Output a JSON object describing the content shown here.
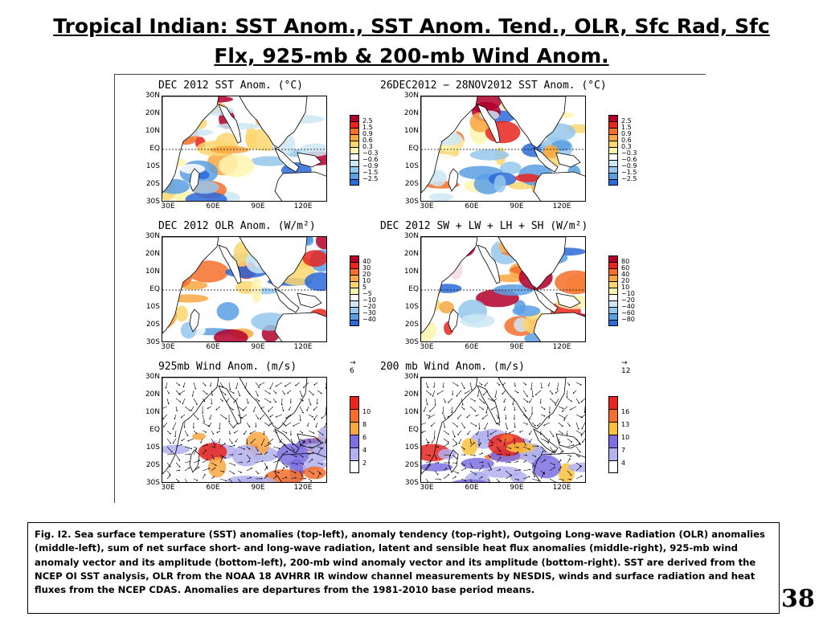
{
  "slide": {
    "title": "Tropical Indian: SST Anom., SST Anom. Tend., OLR, Sfc Rad, Sfc Flx, 925-mb & 200-mb Wind Anom.",
    "page_number": "38"
  },
  "axes": {
    "lat_labels": [
      "30N",
      "20N",
      "10N",
      "EQ",
      "10S",
      "20S",
      "30S"
    ],
    "lon_labels": [
      "30E",
      "60E",
      "90E",
      "120E"
    ]
  },
  "panels": [
    {
      "id": "sst",
      "title": "DEC 2012 SST Anom. (°C)",
      "colorbar": {
        "labels": [
          "2.5",
          "1.5",
          "0.9",
          "0.6",
          "0.3",
          "−0.3",
          "−0.6",
          "−0.9",
          "−1.5",
          "−2.5"
        ],
        "colors": [
          "#b2002a",
          "#e8251e",
          "#f46f2b",
          "#f9a742",
          "#fbd66e",
          "#fff4b0",
          "#ffffff",
          "#cde8f4",
          "#95c7ec",
          "#5a9fe3",
          "#2b6ad9"
        ]
      }
    },
    {
      "id": "sst-tend",
      "title": "26DEC2012 − 28NOV2012 SST Anom. (°C)",
      "colorbar": {
        "labels": [
          "2.5",
          "1.5",
          "0.9",
          "0.6",
          "0.3",
          "−0.3",
          "−0.6",
          "−0.9",
          "−1.5",
          "−2.5"
        ],
        "colors": [
          "#b2002a",
          "#e8251e",
          "#f46f2b",
          "#f9a742",
          "#fbd66e",
          "#fff4b0",
          "#ffffff",
          "#cde8f4",
          "#95c7ec",
          "#5a9fe3",
          "#2b6ad9"
        ]
      }
    },
    {
      "id": "olr",
      "title": "DEC 2012 OLR Anom. (W/m²)",
      "colorbar": {
        "labels": [
          "40",
          "30",
          "20",
          "10",
          "5",
          "−5",
          "−10",
          "−20",
          "−30",
          "−40"
        ],
        "colors": [
          "#b2002a",
          "#e8251e",
          "#f46f2b",
          "#f9a742",
          "#fbd66e",
          "#fff4b0",
          "#ffffff",
          "#cde8f4",
          "#95c7ec",
          "#5a9fe3",
          "#2b6ad9"
        ]
      }
    },
    {
      "id": "flux",
      "title": "DEC 2012 SW + LW + LH + SH (W/m²)",
      "colorbar": {
        "labels": [
          "80",
          "60",
          "40",
          "20",
          "10",
          "−10",
          "−20",
          "−40",
          "−60",
          "−80"
        ],
        "colors": [
          "#b2002a",
          "#e8251e",
          "#f46f2b",
          "#f9a742",
          "#fbd66e",
          "#fff4b0",
          "#ffffff",
          "#cde8f4",
          "#95c7ec",
          "#5a9fe3",
          "#2b6ad9"
        ]
      }
    },
    {
      "id": "wind925",
      "title": "925mb Wind Anom. (m/s)",
      "ref_vector": "6",
      "colorbar": {
        "labels": [
          "10",
          "8",
          "6",
          "4",
          "2"
        ],
        "colors": [
          "#e8251e",
          "#f46f2b",
          "#f9a742",
          "#7d6fe0",
          "#b3b2f0",
          "#ffffff"
        ]
      }
    },
    {
      "id": "wind200",
      "title": "200 mb Wind Anom. (m/s)",
      "ref_vector": "12",
      "colorbar": {
        "labels": [
          "16",
          "13",
          "10",
          "7",
          "4"
        ],
        "colors": [
          "#e8251e",
          "#f46f2b",
          "#f9c23c",
          "#7d6fe0",
          "#b3b2f0",
          "#ffffff"
        ]
      }
    }
  ],
  "caption": "Fig. I2. Sea surface temperature (SST) anomalies (top-left), anomaly tendency (top-right), Outgoing Long-wave Radiation (OLR) anomalies (middle-left), sum of net surface short- and long-wave radiation, latent and sensible heat flux anomalies (middle-right), 925-mb wind anomaly vector and its amplitude (bottom-left), 200-mb wind anomaly vector and its amplitude  (bottom-right). SST are derived from the NCEP OI SST analysis, OLR from the NOAA 18 AVHRR IR window channel measurements by NESDIS, winds and surface radiation and heat fluxes from the NCEP CDAS. Anomalies are  departures from the 1981-2010 base period means."
}
